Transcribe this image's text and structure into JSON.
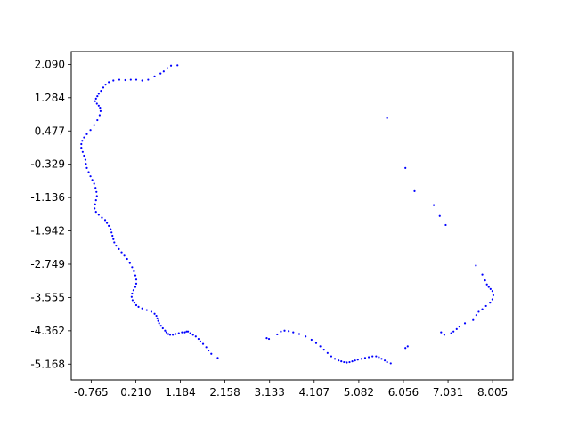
{
  "chart_data": {
    "type": "scatter",
    "title": "",
    "xlabel": "",
    "ylabel": "",
    "xlim": [
      -1.2,
      8.45
    ],
    "ylim": [
      -5.55,
      2.4
    ],
    "x_ticks": [
      -0.765,
      0.21,
      1.184,
      2.158,
      3.133,
      4.107,
      5.082,
      6.056,
      7.031,
      8.005
    ],
    "x_tick_labels": [
      "-0.765",
      "0.210",
      "1.184",
      "2.158",
      "3.133",
      "4.107",
      "5.082",
      "6.056",
      "7.031",
      "8.005"
    ],
    "y_ticks": [
      2.09,
      1.284,
      0.477,
      -0.329,
      -1.136,
      -1.942,
      -2.749,
      -3.555,
      -4.362,
      -5.168
    ],
    "y_tick_labels": [
      "2.090",
      "1.284",
      "0.477",
      "-0.329",
      "-1.136",
      "-1.942",
      "-2.749",
      "-3.555",
      "-4.362",
      "-5.168"
    ],
    "grid": false,
    "marker_color": "#0000ff",
    "series": [
      {
        "x": [
          1.12,
          0.98,
          0.9,
          0.82,
          0.75,
          0.62,
          0.48,
          0.35,
          0.22,
          0.1,
          -0.02,
          -0.15,
          -0.28,
          -0.38,
          -0.45,
          -0.5,
          -0.55,
          -0.6,
          -0.63,
          -0.66,
          -0.68,
          -0.64,
          -0.6,
          -0.57,
          -0.56,
          -0.58,
          -0.63,
          -0.7,
          -0.78,
          -0.86,
          -0.92,
          -0.96,
          -0.98,
          -0.98,
          -0.95,
          -0.92,
          -0.89,
          -0.88,
          -0.86,
          -0.82,
          -0.78,
          -0.74,
          -0.7,
          -0.67,
          -0.65,
          -0.64,
          -0.66,
          -0.68,
          -0.69,
          -0.66,
          -0.6,
          -0.53,
          -0.46,
          -0.42,
          -0.38,
          -0.34,
          -0.32,
          -0.3,
          -0.28,
          -0.26,
          -0.22,
          -0.16,
          -0.1,
          -0.04,
          0.02,
          0.08,
          0.13,
          0.17,
          0.2,
          0.22,
          0.22,
          0.2,
          0.16,
          0.13,
          0.12,
          0.14,
          0.18,
          0.22,
          0.27,
          0.35,
          0.45,
          0.55,
          0.62,
          0.66,
          0.68,
          0.7,
          0.72,
          0.76,
          0.8,
          0.85,
          0.88,
          0.92,
          0.96,
          1.02,
          1.08,
          1.15,
          1.22,
          1.28,
          1.32,
          1.35,
          1.4,
          1.46,
          1.52,
          1.58,
          1.62,
          1.68,
          1.75,
          1.8,
          1.86,
          2.0,
          3.07,
          3.12,
          3.3,
          3.38,
          3.46,
          3.55,
          3.65,
          3.78,
          3.92,
          4.05,
          4.15,
          4.24,
          4.32,
          4.4,
          4.48,
          4.56,
          4.64,
          4.7,
          4.76,
          4.82,
          4.88,
          4.94,
          5.0,
          5.06,
          5.14,
          5.22,
          5.3,
          5.38,
          5.46,
          5.52,
          5.58,
          5.65,
          5.7,
          5.78,
          6.1,
          6.15,
          6.88,
          6.95,
          7.1,
          7.15,
          7.22,
          7.28,
          7.4,
          7.64,
          7.78,
          7.84,
          7.88,
          7.92,
          7.96,
          8.0,
          8.02,
          8.0,
          7.95,
          7.86,
          7.78,
          7.7,
          7.65,
          7.58,
          6.98,
          6.85,
          6.72,
          6.3,
          6.1,
          5.7
        ],
        "y": [
          2.07,
          2.06,
          2.0,
          1.92,
          1.87,
          1.8,
          1.72,
          1.7,
          1.72,
          1.72,
          1.71,
          1.72,
          1.7,
          1.66,
          1.6,
          1.53,
          1.45,
          1.38,
          1.32,
          1.26,
          1.2,
          1.14,
          1.09,
          1.04,
          0.96,
          0.86,
          0.74,
          0.62,
          0.5,
          0.4,
          0.32,
          0.24,
          0.16,
          0.07,
          -0.03,
          -0.12,
          -0.22,
          -0.32,
          -0.42,
          -0.52,
          -0.62,
          -0.71,
          -0.8,
          -0.9,
          -1.0,
          -1.1,
          -1.2,
          -1.3,
          -1.4,
          -1.48,
          -1.55,
          -1.62,
          -1.68,
          -1.75,
          -1.82,
          -1.9,
          -1.98,
          -2.06,
          -2.14,
          -2.22,
          -2.3,
          -2.38,
          -2.46,
          -2.54,
          -2.62,
          -2.72,
          -2.82,
          -2.92,
          -3.02,
          -3.12,
          -3.22,
          -3.3,
          -3.38,
          -3.46,
          -3.54,
          -3.62,
          -3.68,
          -3.74,
          -3.78,
          -3.82,
          -3.86,
          -3.9,
          -3.95,
          -4.0,
          -4.06,
          -4.12,
          -4.18,
          -4.24,
          -4.3,
          -4.36,
          -4.4,
          -4.44,
          -4.46,
          -4.46,
          -4.44,
          -4.42,
          -4.4,
          -4.4,
          -4.38,
          -4.38,
          -4.42,
          -4.46,
          -4.5,
          -4.56,
          -4.62,
          -4.68,
          -4.76,
          -4.84,
          -4.92,
          -5.02,
          -4.54,
          -4.56,
          -4.45,
          -4.38,
          -4.36,
          -4.37,
          -4.4,
          -4.44,
          -4.5,
          -4.58,
          -4.66,
          -4.74,
          -4.82,
          -4.9,
          -4.98,
          -5.04,
          -5.08,
          -5.1,
          -5.12,
          -5.13,
          -5.12,
          -5.1,
          -5.08,
          -5.06,
          -5.04,
          -5.02,
          -5.0,
          -4.98,
          -4.98,
          -5.0,
          -5.04,
          -5.08,
          -5.12,
          -5.15,
          -4.78,
          -4.74,
          -4.4,
          -4.46,
          -4.42,
          -4.38,
          -4.32,
          -4.26,
          -4.18,
          -2.78,
          -3.0,
          -3.14,
          -3.24,
          -3.3,
          -3.35,
          -3.4,
          -3.5,
          -3.6,
          -3.68,
          -3.76,
          -3.84,
          -3.9,
          -3.98,
          -4.1,
          -1.8,
          -1.58,
          -1.32,
          -0.98,
          -0.42,
          0.79
        ]
      }
    ]
  }
}
